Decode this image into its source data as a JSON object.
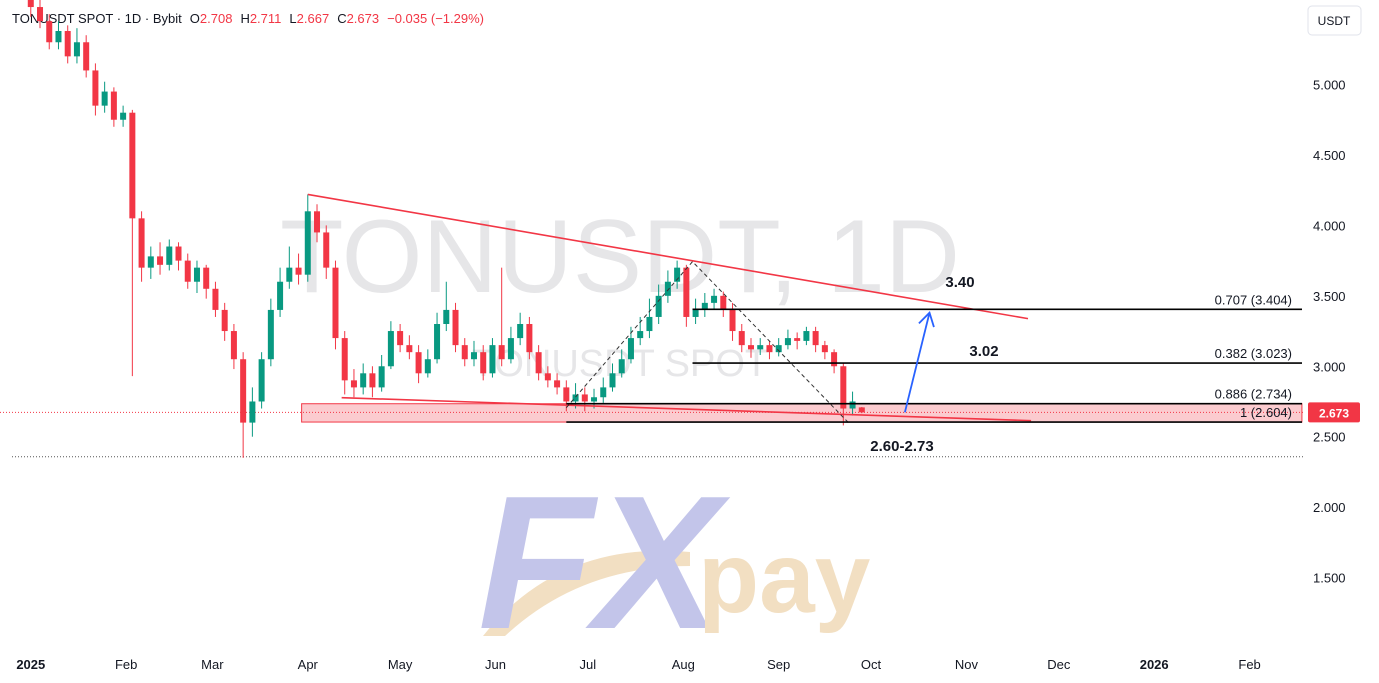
{
  "header": {
    "symbol": "TONUSDT SPOT · 1D · Bybit",
    "open_label": "O",
    "high_label": "H",
    "low_label": "L",
    "close_label": "C",
    "change": "−0.035 (−1.29%)",
    "currency_button": "USDT"
  },
  "watermark": {
    "title": "TONUSDT, 1D",
    "subtitle": "TONUSDT SPOT"
  },
  "logo": {
    "mark": "FX",
    "word": "pay"
  },
  "chart_data": {
    "type": "candlestick",
    "up_color": "#089981",
    "down_color": "#f23645",
    "xlim": [
      -10,
      414
    ],
    "ylim": [
      1.0,
      5.6
    ],
    "xticks": [
      {
        "value": 0,
        "label": "2025"
      },
      {
        "value": 31,
        "label": "Feb"
      },
      {
        "value": 59,
        "label": "Mar"
      },
      {
        "value": 90,
        "label": "Apr"
      },
      {
        "value": 120,
        "label": "May"
      },
      {
        "value": 151,
        "label": "Jun"
      },
      {
        "value": 181,
        "label": "Jul"
      },
      {
        "value": 212,
        "label": "Aug"
      },
      {
        "value": 243,
        "label": "Sep"
      },
      {
        "value": 273,
        "label": "Oct"
      },
      {
        "value": 304,
        "label": "Nov"
      },
      {
        "value": 334,
        "label": "Dec"
      },
      {
        "value": 365,
        "label": "2026"
      },
      {
        "value": 396,
        "label": "Feb"
      }
    ],
    "yticks": [
      {
        "value": 1.5,
        "label": "1.500"
      },
      {
        "value": 2,
        "label": "2.000"
      },
      {
        "value": 2.5,
        "label": "2.500"
      },
      {
        "value": 3,
        "label": "3.000"
      },
      {
        "value": 3.5,
        "label": "3.500"
      },
      {
        "value": 4,
        "label": "4.000"
      },
      {
        "value": 4.5,
        "label": "4.500"
      },
      {
        "value": 5,
        "label": "5.000"
      }
    ],
    "x": [
      0,
      3,
      6,
      9,
      12,
      15,
      18,
      21,
      24,
      27,
      30,
      33,
      36,
      39,
      42,
      45,
      48,
      51,
      54,
      57,
      60,
      63,
      66,
      69,
      72,
      75,
      78,
      81,
      84,
      87,
      90,
      93,
      96,
      99,
      102,
      105,
      108,
      111,
      114,
      117,
      120,
      123,
      126,
      129,
      132,
      135,
      138,
      141,
      144,
      147,
      150,
      153,
      156,
      159,
      162,
      165,
      168,
      171,
      174,
      177,
      180,
      183,
      186,
      189,
      192,
      195,
      198,
      201,
      204,
      207,
      210,
      213,
      216,
      219,
      222,
      225,
      228,
      231,
      234,
      237,
      240,
      243,
      246,
      249,
      252,
      255,
      258,
      261,
      264,
      267,
      270
    ],
    "open": [
      5.6,
      5.55,
      5.45,
      5.3,
      5.38,
      5.2,
      5.3,
      5.1,
      4.85,
      4.95,
      4.75,
      4.8,
      4.05,
      3.7,
      3.78,
      3.72,
      3.85,
      3.75,
      3.6,
      3.7,
      3.55,
      3.4,
      3.25,
      3.05,
      2.6,
      2.75,
      3.05,
      3.4,
      3.6,
      3.7,
      3.65,
      4.1,
      3.95,
      3.7,
      3.2,
      2.9,
      2.85,
      2.95,
      2.85,
      3.0,
      3.25,
      3.15,
      3.1,
      2.95,
      3.05,
      3.3,
      3.4,
      3.15,
      3.05,
      3.1,
      2.95,
      3.15,
      3.05,
      3.2,
      3.3,
      3.1,
      2.95,
      2.9,
      2.85,
      2.75,
      2.8,
      2.75,
      2.78,
      2.85,
      2.95,
      3.05,
      3.2,
      3.25,
      3.35,
      3.5,
      3.6,
      3.7,
      3.35,
      3.4,
      3.45,
      3.5,
      3.4,
      3.25,
      3.15,
      3.12,
      3.15,
      3.1,
      3.15,
      3.2,
      3.18,
      3.25,
      3.15,
      3.1,
      3.0,
      2.7,
      2.708
    ],
    "high": [
      5.65,
      5.6,
      5.5,
      5.45,
      5.42,
      5.4,
      5.35,
      5.15,
      5.02,
      4.98,
      4.85,
      4.82,
      4.1,
      3.85,
      3.88,
      3.9,
      3.88,
      3.8,
      3.75,
      3.72,
      3.6,
      3.45,
      3.3,
      3.1,
      2.85,
      3.1,
      3.48,
      3.7,
      3.85,
      3.8,
      4.22,
      4.15,
      4.0,
      3.75,
      3.25,
      2.98,
      3.02,
      3.0,
      3.08,
      3.32,
      3.3,
      3.22,
      3.15,
      3.12,
      3.38,
      3.6,
      3.45,
      3.2,
      3.18,
      3.15,
      3.2,
      3.7,
      3.28,
      3.38,
      3.35,
      3.15,
      3.0,
      2.95,
      2.9,
      2.88,
      2.85,
      2.84,
      2.92,
      3.02,
      3.12,
      3.28,
      3.35,
      3.48,
      3.58,
      3.68,
      3.75,
      3.72,
      3.48,
      3.52,
      3.55,
      3.53,
      3.45,
      3.3,
      3.2,
      3.2,
      3.18,
      3.2,
      3.26,
      3.24,
      3.28,
      3.28,
      3.18,
      3.12,
      3.02,
      2.82,
      2.711
    ],
    "low": [
      5.48,
      5.4,
      5.25,
      5.25,
      5.15,
      5.15,
      5.05,
      4.78,
      4.8,
      4.7,
      4.7,
      2.93,
      3.6,
      3.62,
      3.65,
      3.68,
      3.68,
      3.55,
      3.52,
      3.48,
      3.35,
      3.18,
      2.98,
      2.35,
      2.5,
      2.7,
      3.0,
      3.35,
      3.55,
      3.58,
      3.6,
      3.88,
      3.62,
      3.12,
      2.8,
      2.78,
      2.8,
      2.78,
      2.82,
      2.98,
      3.1,
      3.05,
      2.88,
      2.92,
      3.02,
      3.25,
      3.1,
      3.0,
      3.0,
      2.9,
      2.92,
      3.0,
      3.02,
      3.15,
      3.05,
      2.9,
      2.85,
      2.8,
      2.68,
      2.7,
      2.68,
      2.7,
      2.74,
      2.82,
      2.92,
      3.02,
      3.15,
      3.2,
      3.3,
      3.45,
      3.55,
      3.28,
      3.3,
      3.35,
      3.4,
      3.35,
      3.18,
      3.1,
      3.06,
      3.08,
      3.05,
      3.07,
      3.12,
      3.12,
      3.15,
      3.1,
      3.05,
      2.95,
      2.58,
      2.65,
      2.667
    ],
    "close": [
      5.55,
      5.45,
      5.3,
      5.38,
      5.2,
      5.3,
      5.1,
      4.85,
      4.95,
      4.75,
      4.8,
      4.05,
      3.7,
      3.78,
      3.72,
      3.85,
      3.75,
      3.6,
      3.7,
      3.55,
      3.4,
      3.25,
      3.05,
      2.6,
      2.75,
      3.05,
      3.4,
      3.6,
      3.7,
      3.65,
      4.1,
      3.95,
      3.7,
      3.2,
      2.9,
      2.85,
      2.95,
      2.85,
      3.0,
      3.25,
      3.15,
      3.1,
      2.95,
      3.05,
      3.3,
      3.4,
      3.15,
      3.05,
      3.1,
      2.95,
      3.15,
      3.05,
      3.2,
      3.3,
      3.1,
      2.95,
      2.9,
      2.85,
      2.75,
      2.8,
      2.75,
      2.78,
      2.85,
      2.95,
      3.05,
      3.2,
      3.25,
      3.35,
      3.5,
      3.6,
      3.7,
      3.35,
      3.4,
      3.45,
      3.5,
      3.4,
      3.25,
      3.15,
      3.12,
      3.15,
      3.1,
      3.15,
      3.2,
      3.18,
      3.25,
      3.15,
      3.1,
      3.0,
      2.7,
      2.75,
      2.673
    ],
    "trendline_color": "#f23645",
    "trendlines": [
      {
        "x": [
          90,
          324
        ],
        "y": [
          4.22,
          3.338
        ]
      },
      {
        "x": [
          101,
          325
        ],
        "y": [
          2.777,
          2.614
        ]
      }
    ],
    "zone": {
      "x": [
        88,
        413
      ],
      "y": [
        2.604,
        2.734
      ],
      "color": "#f7a1a8"
    },
    "zigzag": {
      "x": [
        174,
        215,
        266
      ],
      "y": [
        2.706,
        3.743,
        2.592
      ]
    },
    "fib_levels": [
      {
        "value": 3.404,
        "label": "0.707 (3.404)",
        "from": 215
      },
      {
        "value": 3.023,
        "label": "0.382 (3.023)",
        "from": 215
      },
      {
        "value": 2.734,
        "label": "0.886 (2.734)",
        "from": 174
      },
      {
        "value": 2.604,
        "label": "1 (2.604)",
        "from": 174
      }
    ],
    "arrow": {
      "x": [
        284,
        292
      ],
      "y": [
        2.673,
        3.38
      ],
      "color": "#2962ff"
    },
    "last_price": {
      "value": 2.673,
      "label": "2.673"
    },
    "low_line": 2.358,
    "targets": [
      "3.40",
      "3.02",
      "2.60-2.73"
    ]
  }
}
